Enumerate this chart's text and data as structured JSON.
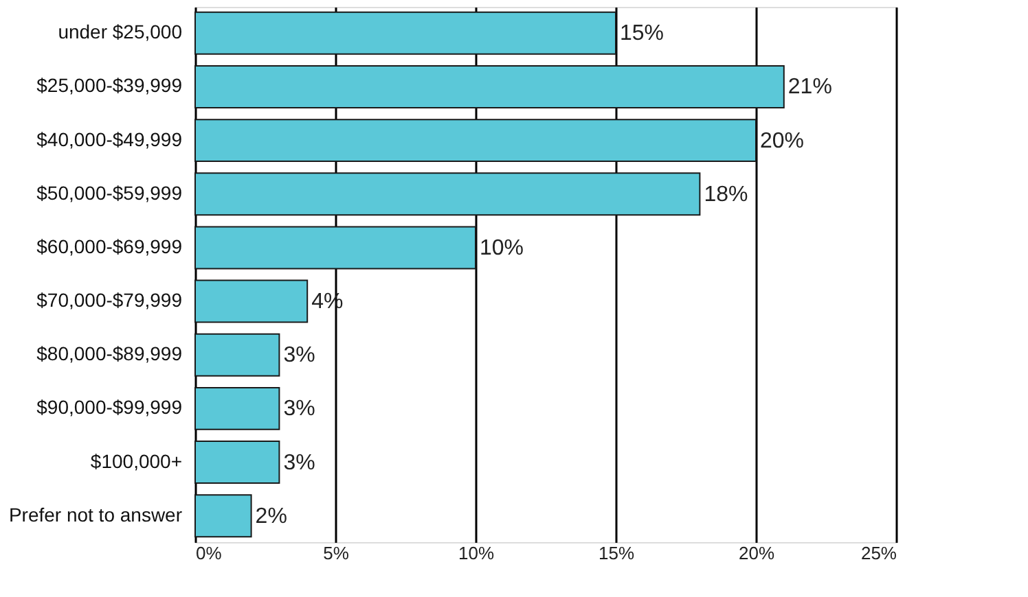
{
  "chart_data": {
    "type": "bar",
    "orientation": "horizontal",
    "categories": [
      "under $25,000",
      "$25,000-$39,999",
      "$40,000-$49,999",
      "$50,000-$59,999",
      "$60,000-$69,999",
      "$70,000-$79,999",
      "$80,000-$89,999",
      "$90,000-$99,999",
      "$100,000+",
      "Prefer not to answer"
    ],
    "values": [
      15,
      21,
      20,
      18,
      10,
      4,
      3,
      3,
      3,
      2
    ],
    "value_labels": [
      "15%",
      "21%",
      "20%",
      "18%",
      "10%",
      "4%",
      "3%",
      "3%",
      "3%",
      "2%"
    ],
    "color": "#5bc8d8",
    "xlim": [
      0,
      25
    ],
    "xticks": [
      {
        "value": 0,
        "label": "0%"
      },
      {
        "value": 5,
        "label": "5%"
      },
      {
        "value": 10,
        "label": "10%"
      },
      {
        "value": 15,
        "label": "15%"
      },
      {
        "value": 20,
        "label": "20%"
      },
      {
        "value": 25,
        "label": "25%"
      }
    ],
    "grid": "x"
  }
}
